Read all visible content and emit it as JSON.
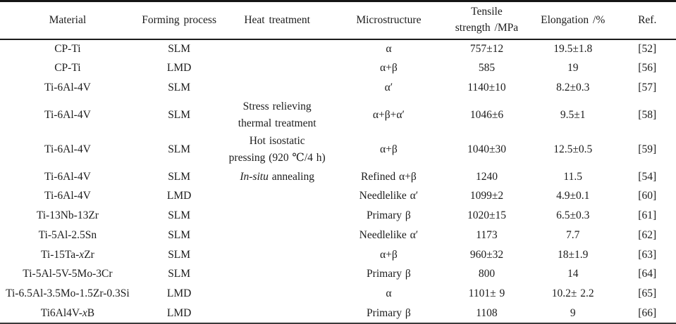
{
  "table": {
    "columns": [
      {
        "key": "material",
        "label": "Material"
      },
      {
        "key": "forming",
        "label": "Forming process"
      },
      {
        "key": "heat",
        "label": "Heat treatment"
      },
      {
        "key": "micro",
        "label": "Microstructure"
      },
      {
        "key": "tensile",
        "label": [
          {
            "t": "Tensile"
          },
          {
            "br": true
          },
          {
            "t": "strength /MPa"
          }
        ]
      },
      {
        "key": "elong",
        "label": "Elongation /%"
      },
      {
        "key": "ref",
        "label": "Ref."
      }
    ],
    "rows": [
      {
        "material": "CP-Ti",
        "forming": "SLM",
        "heat": "",
        "micro": "α",
        "tensile": "757±12",
        "elong": "19.5±1.8",
        "ref": "[52]"
      },
      {
        "material": "CP-Ti",
        "forming": "LMD",
        "heat": "",
        "micro": "α+β",
        "tensile": "585",
        "elong": "19",
        "ref": "[56]"
      },
      {
        "material": "Ti-6Al-4V",
        "forming": "SLM",
        "heat": "",
        "micro": "α′",
        "tensile": "1140±10",
        "elong": "8.2±0.3",
        "ref": "[57]"
      },
      {
        "material": "Ti-6Al-4V",
        "forming": "SLM",
        "heat": [
          {
            "t": "Stress relieving"
          },
          {
            "br": true
          },
          {
            "t": "thermal treatment"
          }
        ],
        "micro": "α+β+α′",
        "tensile": "1046±6",
        "elong": "9.5±1",
        "ref": "[58]"
      },
      {
        "material": "Ti-6Al-4V",
        "forming": "SLM",
        "heat": [
          {
            "t": "Hot isostatic"
          },
          {
            "br": true
          },
          {
            "t": "pressing (920 ℃/4 h)"
          }
        ],
        "micro": "α+β",
        "tensile": "1040±30",
        "elong": "12.5±0.5",
        "ref": "[59]"
      },
      {
        "material": "Ti-6Al-4V",
        "forming": "SLM",
        "heat": [
          {
            "t": "In-situ",
            "i": true
          },
          {
            "t": " annealing"
          }
        ],
        "micro": "Refined α+β",
        "tensile": "1240",
        "elong": "11.5",
        "ref": "[54]"
      },
      {
        "material": "Ti-6Al-4V",
        "forming": "LMD",
        "heat": "",
        "micro": "Needlelike α′",
        "tensile": "1099±2",
        "elong": "4.9±0.1",
        "ref": "[60]"
      },
      {
        "material": "Ti-13Nb-13Zr",
        "forming": "SLM",
        "heat": "",
        "micro": "Primary β",
        "tensile": "1020±15",
        "elong": "6.5±0.3",
        "ref": "[61]"
      },
      {
        "material": "Ti-5Al-2.5Sn",
        "forming": "SLM",
        "heat": "",
        "micro": "Needlelike α′",
        "tensile": "1173",
        "elong": "7.7",
        "ref": "[62]"
      },
      {
        "material": [
          {
            "t": "Ti-15Ta-"
          },
          {
            "t": "x",
            "i": true
          },
          {
            "t": "Zr"
          }
        ],
        "forming": "SLM",
        "heat": "",
        "micro": "α+β",
        "tensile": "960±32",
        "elong": "18±1.9",
        "ref": "[63]"
      },
      {
        "material": "Ti-5Al-5V-5Mo-3Cr",
        "forming": "SLM",
        "heat": "",
        "micro": "Primary β",
        "tensile": "800",
        "elong": "14",
        "ref": "[64]"
      },
      {
        "material": "Ti-6.5Al-3.5Mo-1.5Zr-0.3Si",
        "forming": "LMD",
        "heat": "",
        "micro": "α",
        "tensile": "1101± 9",
        "elong": "10.2± 2.2",
        "ref": "[65]"
      },
      {
        "material": [
          {
            "t": "Ti6Al4V-"
          },
          {
            "t": "x",
            "i": true
          },
          {
            "t": "B"
          }
        ],
        "forming": "LMD",
        "heat": "",
        "micro": "Primary β",
        "tensile": "1108",
        "elong": "9",
        "ref": "[66]"
      }
    ]
  }
}
